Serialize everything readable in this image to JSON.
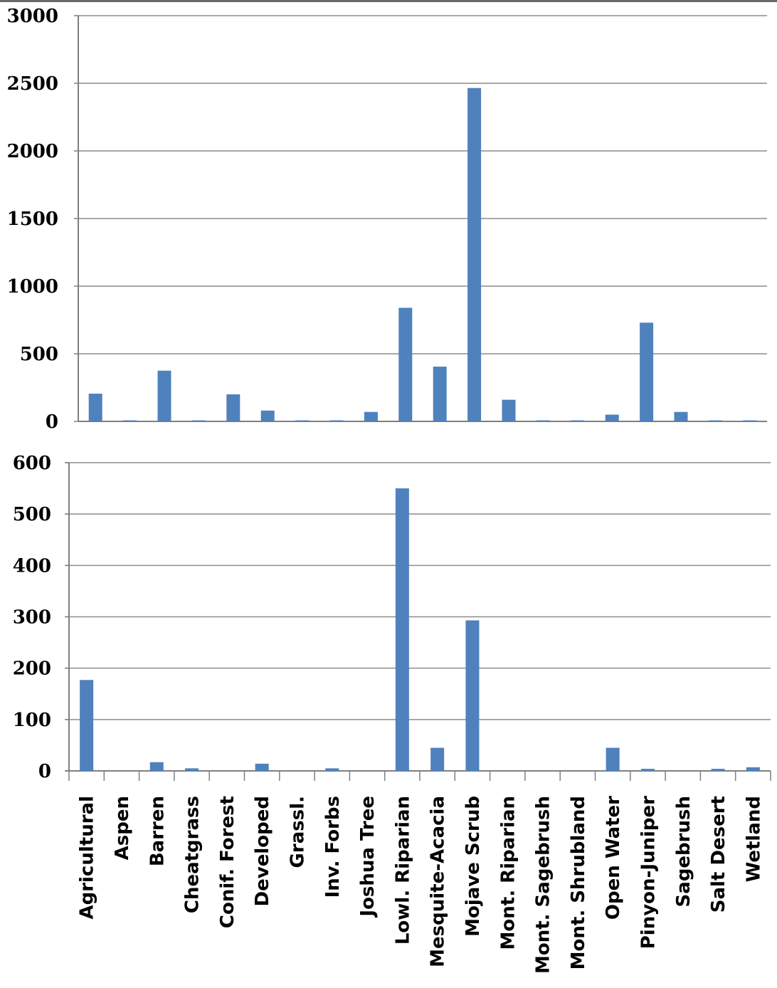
{
  "colors": {
    "bar": "#4F81BD",
    "gridline": "#8c8c8c",
    "axis": "#7f7f7f",
    "background": "#ffffff"
  },
  "chart_data": [
    {
      "type": "bar",
      "title": "",
      "xlabel": "",
      "ylabel": "",
      "ylim": [
        0,
        3000
      ],
      "yticks": [
        0,
        500,
        1000,
        1500,
        2000,
        2500,
        3000
      ],
      "grid": true,
      "legend": "none",
      "categories": [
        "Agricultural",
        "Aspen",
        "Barren",
        "Cheatgrass",
        "Conif. Forest",
        "Developed",
        "Grassl.",
        "Inv. Forbs",
        "Joshua Tree",
        "Lowl. Riparian",
        "Mesquite-Acacia",
        "Mojave Scrub",
        "Mont. Riparian",
        "Mont. Sagebrush",
        "Mont. Shrubland",
        "Open Water",
        "Pinyon-Juniper",
        "Sagebrush",
        "Salt Desert",
        "Wetland"
      ],
      "values": [
        205,
        8,
        375,
        8,
        200,
        80,
        8,
        8,
        70,
        840,
        405,
        2465,
        160,
        8,
        8,
        50,
        730,
        70,
        8,
        8
      ]
    },
    {
      "type": "bar",
      "title": "",
      "xlabel": "",
      "ylabel": "",
      "ylim": [
        0,
        600
      ],
      "yticks": [
        0,
        100,
        200,
        300,
        400,
        500,
        600
      ],
      "grid": true,
      "legend": "none",
      "categories": [
        "Agricultural",
        "Aspen",
        "Barren",
        "Cheatgrass",
        "Conif. Forest",
        "Developed",
        "Grassl.",
        "Inv. Forbs",
        "Joshua Tree",
        "Lowl. Riparian",
        "Mesquite-Acacia",
        "Mojave Scrub",
        "Mont. Riparian",
        "Mont. Sagebrush",
        "Mont. Shrubland",
        "Open Water",
        "Pinyon-Juniper",
        "Sagebrush",
        "Salt Desert",
        "Wetland"
      ],
      "values": [
        177,
        0,
        17,
        5,
        0,
        14,
        0,
        5,
        0,
        550,
        45,
        293,
        0,
        0,
        0,
        45,
        4,
        0,
        4,
        7
      ]
    }
  ]
}
